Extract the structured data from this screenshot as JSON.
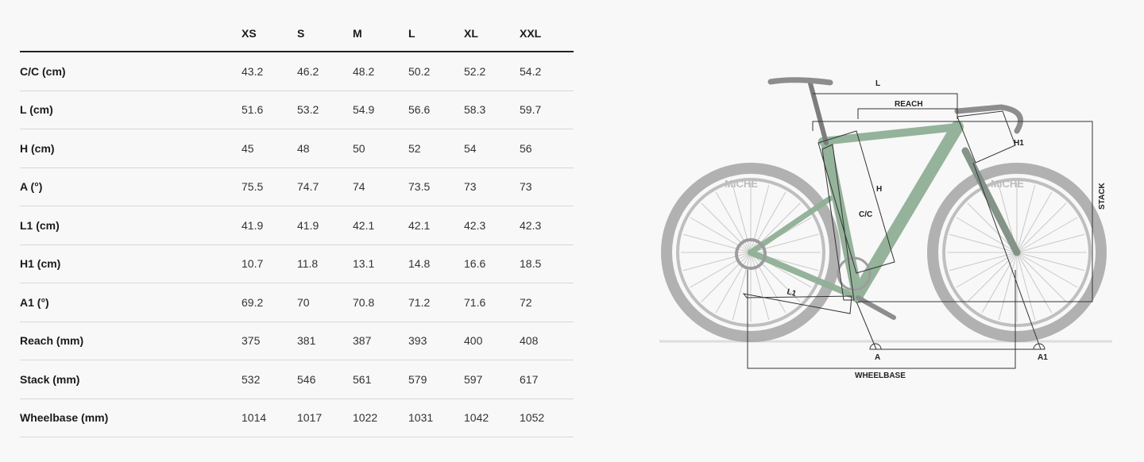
{
  "table": {
    "sizes": [
      "XS",
      "S",
      "M",
      "L",
      "XL",
      "XXL"
    ],
    "rows": [
      {
        "label": "C/C (cm)",
        "values": [
          "43.2",
          "46.2",
          "48.2",
          "50.2",
          "52.2",
          "54.2"
        ]
      },
      {
        "label": "L (cm)",
        "values": [
          "51.6",
          "53.2",
          "54.9",
          "56.6",
          "58.3",
          "59.7"
        ]
      },
      {
        "label": "H (cm)",
        "values": [
          "45",
          "48",
          "50",
          "52",
          "54",
          "56"
        ]
      },
      {
        "label": "A (°)",
        "values": [
          "75.5",
          "74.7",
          "74",
          "73.5",
          "73",
          "73"
        ]
      },
      {
        "label": "L1 (cm)",
        "values": [
          "41.9",
          "41.9",
          "42.1",
          "42.1",
          "42.3",
          "42.3"
        ]
      },
      {
        "label": "H1 (cm)",
        "values": [
          "10.7",
          "11.8",
          "13.1",
          "14.8",
          "16.6",
          "18.5"
        ]
      },
      {
        "label": "A1 (°)",
        "values": [
          "69.2",
          "70",
          "70.8",
          "71.2",
          "71.6",
          "72"
        ]
      },
      {
        "label": "Reach (mm)",
        "values": [
          "375",
          "381",
          "387",
          "393",
          "400",
          "408"
        ]
      },
      {
        "label": "Stack (mm)",
        "values": [
          "532",
          "546",
          "561",
          "579",
          "597",
          "617"
        ]
      },
      {
        "label": "Wheelbase (mm)",
        "values": [
          "1014",
          "1017",
          "1022",
          "1031",
          "1042",
          "1052"
        ]
      }
    ]
  },
  "diagram": {
    "labels": {
      "L": "L",
      "reach": "REACH",
      "h1": "H1",
      "stack": "STACK",
      "h": "H",
      "cc": "C/C",
      "l1": "L1",
      "a": "A",
      "a1": "A1",
      "wheelbase": "WHEELBASE"
    },
    "tire_brand": "MICHE",
    "frame_color": "#8fb096",
    "wheel_color": "#9a9a9a"
  }
}
